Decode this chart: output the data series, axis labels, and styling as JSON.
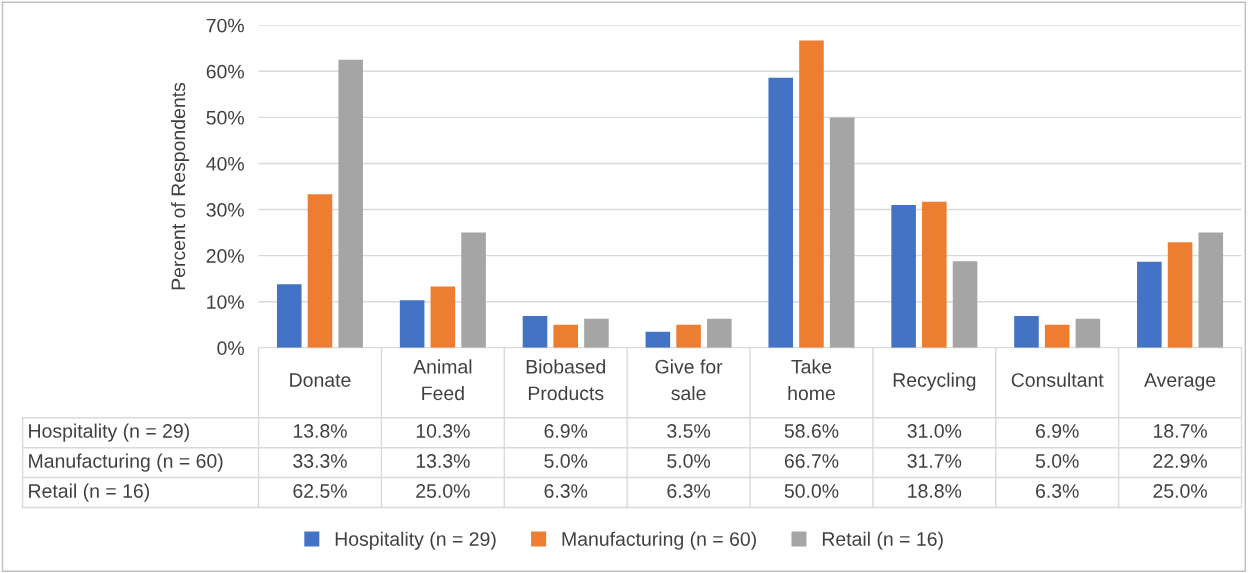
{
  "chart_data": {
    "type": "bar",
    "ylabel": "Percent of Respondents",
    "categories": [
      "Donate",
      "Animal Feed",
      "Biobased Products",
      "Give for sale",
      "Take home",
      "Recycling",
      "Consultant",
      "Average"
    ],
    "series": [
      {
        "name": "Hospitality (n = 29)",
        "color": "#4472c4",
        "values": [
          13.8,
          10.3,
          6.9,
          3.5,
          58.6,
          31.0,
          6.9,
          18.7
        ],
        "value_labels": [
          "13.8%",
          "10.3%",
          "6.9%",
          "3.5%",
          "58.6%",
          "31.0%",
          "6.9%",
          "18.7%"
        ]
      },
      {
        "name": "Manufacturing (n = 60)",
        "color": "#ed7d31",
        "values": [
          33.3,
          13.3,
          5.0,
          5.0,
          66.7,
          31.7,
          5.0,
          22.9
        ],
        "value_labels": [
          "33.3%",
          "13.3%",
          "5.0%",
          "5.0%",
          "66.7%",
          "31.7%",
          "5.0%",
          "22.9%"
        ]
      },
      {
        "name": "Retail (n = 16)",
        "color": "#a5a5a5",
        "values": [
          62.5,
          25.0,
          6.3,
          6.3,
          50.0,
          18.8,
          6.3,
          25.0
        ],
        "value_labels": [
          "62.5%",
          "25.0%",
          "6.3%",
          "6.3%",
          "50.0%",
          "18.8%",
          "6.3%",
          "25.0%"
        ]
      }
    ],
    "ylim": [
      0,
      70
    ],
    "yticks": [
      {
        "value": 0,
        "label": "0%"
      },
      {
        "value": 10,
        "label": "10%"
      },
      {
        "value": 20,
        "label": "20%"
      },
      {
        "value": 30,
        "label": "30%"
      },
      {
        "value": 40,
        "label": "40%"
      },
      {
        "value": 50,
        "label": "50%"
      },
      {
        "value": 60,
        "label": "60%"
      },
      {
        "value": 70,
        "label": "70%"
      }
    ],
    "grid": "y",
    "legend": "bottom"
  }
}
